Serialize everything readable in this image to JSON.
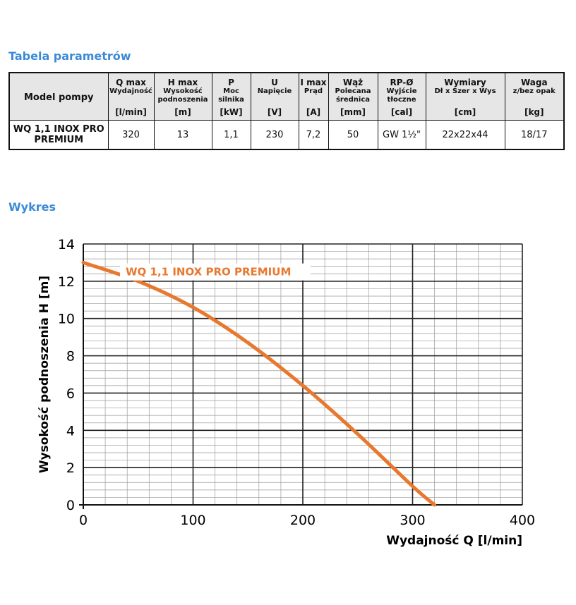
{
  "sections": {
    "table_title": "Tabela parametrów",
    "chart_title": "Wykres"
  },
  "table": {
    "headers": [
      {
        "main": "Model pompy",
        "sub": "",
        "unit": ""
      },
      {
        "main": "Q max",
        "sub": "Wydajność",
        "unit": "[l/min]"
      },
      {
        "main": "H max",
        "sub": "Wysokość podnoszenia",
        "unit": "[m]"
      },
      {
        "main": "P",
        "sub": "Moc silnika",
        "unit": "[kW]"
      },
      {
        "main": "U",
        "sub": "Napięcie",
        "unit": "[V]"
      },
      {
        "main": "I max",
        "sub": "Prąd",
        "unit": "[A]"
      },
      {
        "main": "Wąż",
        "sub": "Polecana średnica",
        "unit": "[mm]"
      },
      {
        "main": "RP-Ø",
        "sub": "Wyjście tłoczne",
        "unit": "[cal]"
      },
      {
        "main": "Wymiary",
        "sub": "Dł x Szer x Wys",
        "unit": "[cm]"
      },
      {
        "main": "Waga",
        "sub": "z/bez opak",
        "unit": "[kg]"
      }
    ],
    "row": [
      "WQ 1,1 INOX PRO PREMIUM",
      "320",
      "13",
      "1,1",
      "230",
      "7,2",
      "50",
      "GW 1½\"",
      "22x22x44",
      "18/17"
    ]
  },
  "chart_data": {
    "type": "line",
    "xlabel": "Wydajność Q [l/min]",
    "ylabel": "Wysokość podnoszenia H [m]",
    "xlim": [
      0,
      400
    ],
    "ylim": [
      0,
      14
    ],
    "xticks": [
      "0",
      "100",
      "200",
      "300",
      "400"
    ],
    "yticks": [
      "0",
      "2",
      "4",
      "6",
      "8",
      "10",
      "12",
      "14"
    ],
    "grid": true,
    "series": [
      {
        "name": "WQ 1,1 INOX PRO PREMIUM",
        "color": "#e8782e",
        "x": [
          0,
          50,
          100,
          150,
          200,
          250,
          300,
          320
        ],
        "y": [
          13,
          12,
          10.6,
          8.7,
          6.4,
          3.8,
          1,
          0
        ]
      }
    ]
  }
}
